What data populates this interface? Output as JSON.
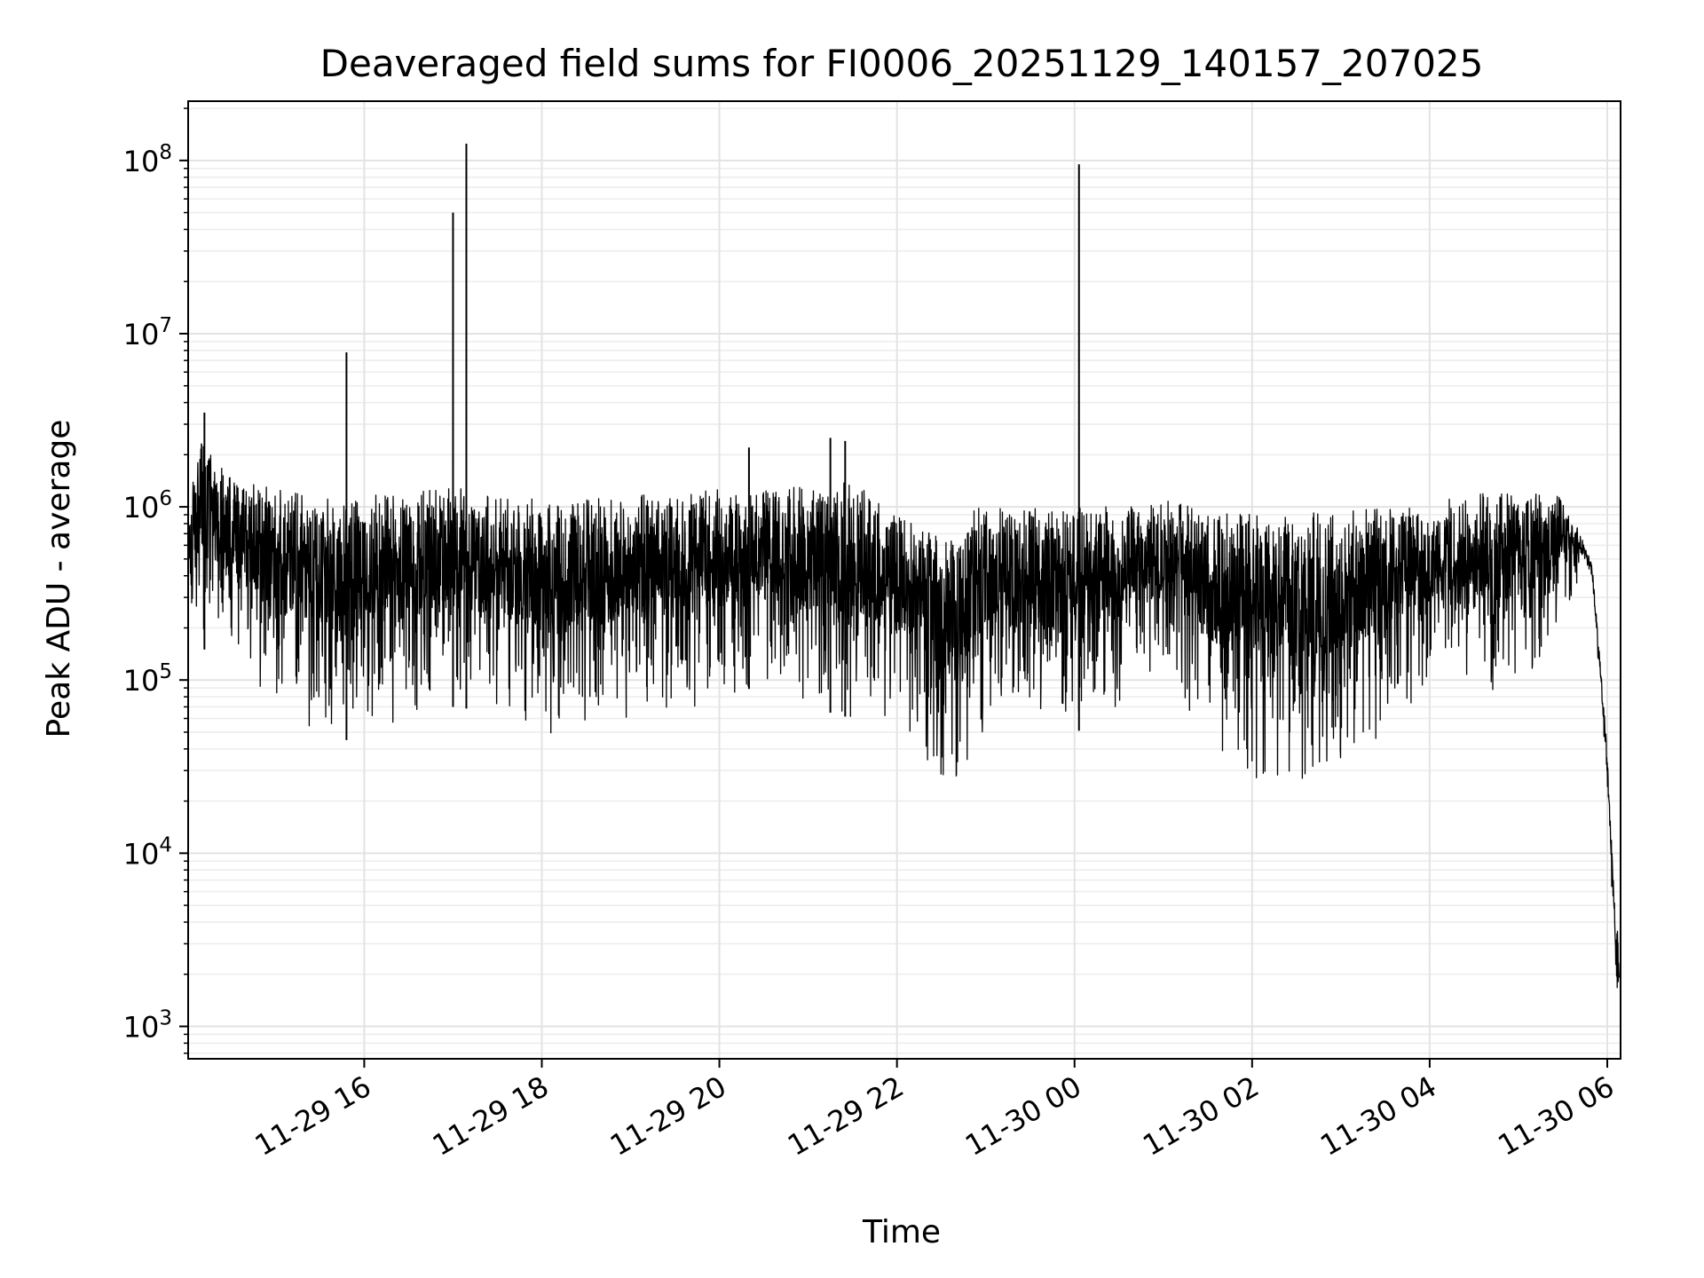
{
  "chart_data": {
    "type": "line",
    "title": "Deaveraged field sums for FI0006_20251129_140157_207025",
    "xlabel": "Time",
    "ylabel": "Peak ADU - average",
    "yscale": "log",
    "ylim": [
      650,
      220000000
    ],
    "xlim": [
      "2025-11-29 14:01",
      "2025-11-30 06:09"
    ],
    "grid": true,
    "line_color": "#000000",
    "x_ticks": [
      {
        "value": "2025-11-29 16:00",
        "label": "11-29 16"
      },
      {
        "value": "2025-11-29 18:00",
        "label": "11-29 18"
      },
      {
        "value": "2025-11-29 20:00",
        "label": "11-29 20"
      },
      {
        "value": "2025-11-29 22:00",
        "label": "11-29 22"
      },
      {
        "value": "2025-11-30 00:00",
        "label": "11-30 00"
      },
      {
        "value": "2025-11-30 02:00",
        "label": "11-30 02"
      },
      {
        "value": "2025-11-30 04:00",
        "label": "11-30 04"
      },
      {
        "value": "2025-11-30 06:00",
        "label": "11-30 06"
      }
    ],
    "y_ticks": [
      {
        "value": 1000,
        "base": "10",
        "exp": "3"
      },
      {
        "value": 10000,
        "base": "10",
        "exp": "4"
      },
      {
        "value": 100000,
        "base": "10",
        "exp": "5"
      },
      {
        "value": 1000000,
        "base": "10",
        "exp": "6"
      },
      {
        "value": 10000000,
        "base": "10",
        "exp": "7"
      },
      {
        "value": 100000000,
        "base": "10",
        "exp": "8"
      }
    ],
    "envelope": [
      [
        "2025-11-29 14:01",
        120000,
        1000000
      ],
      [
        "2025-11-29 14:10",
        150000,
        2500000
      ],
      [
        "2025-11-29 14:30",
        150000,
        1500000
      ],
      [
        "2025-11-29 15:00",
        60000,
        1300000
      ],
      [
        "2025-11-29 15:30",
        45000,
        1100000
      ],
      [
        "2025-11-29 16:00",
        45000,
        1200000
      ],
      [
        "2025-11-29 16:30",
        60000,
        1200000
      ],
      [
        "2025-11-29 17:00",
        70000,
        1300000
      ],
      [
        "2025-11-29 17:30",
        65000,
        1200000
      ],
      [
        "2025-11-29 18:00",
        40000,
        1100000
      ],
      [
        "2025-11-29 18:30",
        55000,
        1100000
      ],
      [
        "2025-11-29 19:00",
        60000,
        1200000
      ],
      [
        "2025-11-29 19:30",
        60000,
        1200000
      ],
      [
        "2025-11-29 20:00",
        70000,
        1300000
      ],
      [
        "2025-11-29 20:30",
        100000,
        1300000
      ],
      [
        "2025-11-29 21:00",
        70000,
        1300000
      ],
      [
        "2025-11-29 21:30",
        60000,
        1400000
      ],
      [
        "2025-11-29 22:00",
        50000,
        900000
      ],
      [
        "2025-11-29 22:30",
        25000,
        700000
      ],
      [
        "2025-11-29 22:45",
        20000,
        600000
      ],
      [
        "2025-11-29 22:50",
        40000,
        1000000
      ],
      [
        "2025-11-29 23:30",
        50000,
        1000000
      ],
      [
        "2025-11-30 00:00",
        50000,
        1000000
      ],
      [
        "2025-11-30 00:30",
        60000,
        1000000
      ],
      [
        "2025-11-30 01:00",
        120000,
        1100000
      ],
      [
        "2025-11-30 01:30",
        40000,
        1000000
      ],
      [
        "2025-11-30 02:00",
        25000,
        900000
      ],
      [
        "2025-11-30 02:30",
        22000,
        900000
      ],
      [
        "2025-11-30 03:00",
        30000,
        1000000
      ],
      [
        "2025-11-30 03:30",
        50000,
        1000000
      ],
      [
        "2025-11-30 04:00",
        90000,
        1100000
      ],
      [
        "2025-11-30 04:30",
        80000,
        1200000
      ],
      [
        "2025-11-30 05:00",
        90000,
        1200000
      ],
      [
        "2025-11-30 05:30",
        200000,
        1200000
      ],
      [
        "2025-11-30 05:45",
        500000,
        600000
      ],
      [
        "2025-11-30 05:50",
        350000,
        450000
      ],
      [
        "2025-11-30 06:00",
        25000,
        40000
      ],
      [
        "2025-11-30 06:05",
        2500,
        5000
      ],
      [
        "2025-11-30 06:08",
        1200,
        3000
      ]
    ],
    "spikes": [
      [
        "2025-11-29 15:48",
        7800000
      ],
      [
        "2025-11-29 17:00",
        50000000
      ],
      [
        "2025-11-29 17:09",
        125000000
      ],
      [
        "2025-11-30 00:03",
        95000000
      ],
      [
        "2025-11-29 21:15",
        2500000
      ],
      [
        "2025-11-29 21:25",
        2400000
      ],
      [
        "2025-11-29 20:20",
        2200000
      ],
      [
        "2025-11-29 14:12",
        3500000
      ]
    ]
  }
}
